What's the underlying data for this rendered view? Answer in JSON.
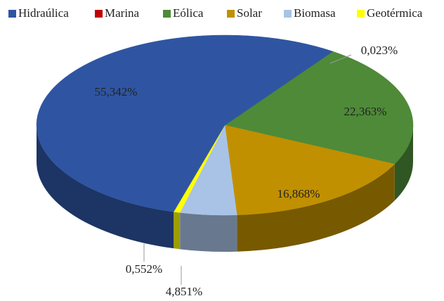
{
  "chart_data": {
    "type": "pie3d",
    "categories": [
      "Hidraúlica",
      "Marina",
      "Eólica",
      "Solar",
      "Biomasa",
      "Geotérmica"
    ],
    "values": [
      55.342,
      0.023,
      22.363,
      16.868,
      4.851,
      0.552
    ],
    "value_labels": [
      "55,342%",
      "0,023%",
      "22,363%",
      "16,868%",
      "4,851%",
      "0,552%"
    ],
    "colors": [
      "#2f55a2",
      "#c00000",
      "#4e8a38",
      "#c09000",
      "#a8c3e6",
      "#ffff00"
    ],
    "legend": "top"
  }
}
